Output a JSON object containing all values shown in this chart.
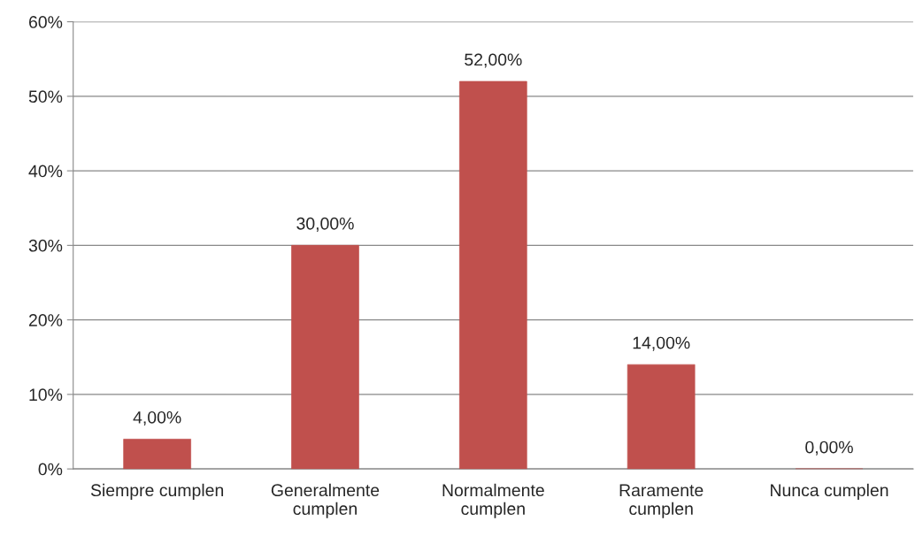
{
  "chart_data": {
    "type": "bar",
    "categories": [
      "Siempre cumplen",
      "Generalmente\ncumplen",
      "Normalmente\ncumplen",
      "Raramente\ncumplen",
      "Nunca cumplen"
    ],
    "values": [
      4,
      30,
      52,
      14,
      0
    ],
    "value_labels": [
      "4,00%",
      "30,00%",
      "52,00%",
      "14,00%",
      "0,00%"
    ],
    "color": "#c0504d",
    "ylim": [
      0,
      60
    ],
    "yticks": [
      {
        "value": 0,
        "label": "0%"
      },
      {
        "value": 10,
        "label": "10%"
      },
      {
        "value": 20,
        "label": "20%"
      },
      {
        "value": 30,
        "label": "30%"
      },
      {
        "value": 40,
        "label": "40%"
      },
      {
        "value": 50,
        "label": "50%"
      },
      {
        "value": 60,
        "label": "60%"
      }
    ],
    "grid": "y",
    "legend": false
  }
}
